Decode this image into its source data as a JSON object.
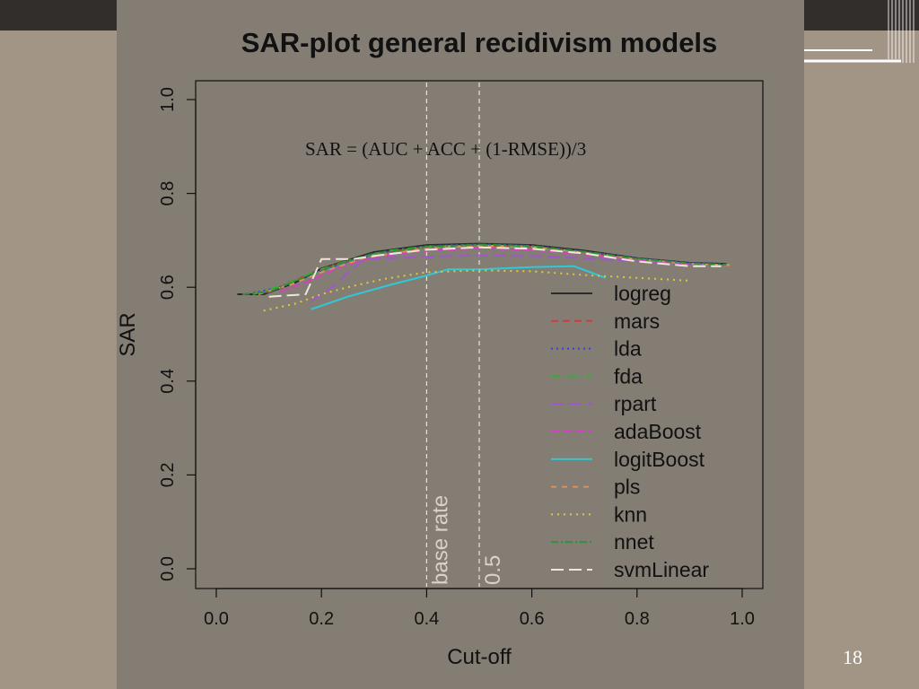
{
  "slide": {
    "number": "18"
  },
  "chart_data": {
    "type": "line",
    "title": "SAR-plot  general recidivism models",
    "annotation": "SAR = (AUC + ACC + (1-RMSE))/3",
    "xlabel": "Cut-off",
    "ylabel": "SAR",
    "xlim": [
      0,
      1.05
    ],
    "ylim": [
      0,
      1.04
    ],
    "xticks": [
      "0.0",
      "0.2",
      "0.4",
      "0.6",
      "0.8",
      "1.0"
    ],
    "yticks": [
      "0.0",
      "0.2",
      "0.4",
      "0.6",
      "0.8",
      "1.0"
    ],
    "vlines": [
      {
        "x": 0.4,
        "label": "base rate"
      },
      {
        "x": 0.5,
        "label": "0.5"
      }
    ],
    "legend_position": "bottom-right",
    "series": [
      {
        "name": "logreg",
        "color": "#2b2b2b",
        "dash": "none",
        "points": [
          [
            0.04,
            0.585
          ],
          [
            0.09,
            0.585
          ],
          [
            0.15,
            0.61
          ],
          [
            0.2,
            0.64
          ],
          [
            0.3,
            0.675
          ],
          [
            0.4,
            0.69
          ],
          [
            0.5,
            0.693
          ],
          [
            0.6,
            0.69
          ],
          [
            0.7,
            0.678
          ],
          [
            0.8,
            0.662
          ],
          [
            0.9,
            0.652
          ],
          [
            0.97,
            0.65
          ]
        ]
      },
      {
        "name": "mars",
        "color": "#d33a3a",
        "dash": "8,5",
        "points": [
          [
            0.05,
            0.585
          ],
          [
            0.1,
            0.59
          ],
          [
            0.16,
            0.62
          ],
          [
            0.22,
            0.645
          ],
          [
            0.3,
            0.672
          ],
          [
            0.4,
            0.685
          ],
          [
            0.5,
            0.69
          ],
          [
            0.6,
            0.686
          ],
          [
            0.7,
            0.675
          ],
          [
            0.8,
            0.66
          ],
          [
            0.9,
            0.65
          ],
          [
            0.96,
            0.648
          ]
        ]
      },
      {
        "name": "lda",
        "color": "#3b3bd0",
        "dash": "2,4",
        "points": [
          [
            0.06,
            0.585
          ],
          [
            0.12,
            0.6
          ],
          [
            0.18,
            0.628
          ],
          [
            0.25,
            0.655
          ],
          [
            0.32,
            0.675
          ],
          [
            0.4,
            0.688
          ],
          [
            0.5,
            0.692
          ],
          [
            0.6,
            0.689
          ],
          [
            0.7,
            0.676
          ],
          [
            0.8,
            0.662
          ],
          [
            0.9,
            0.652
          ],
          [
            0.97,
            0.649
          ]
        ]
      },
      {
        "name": "fda",
        "color": "#30b030",
        "dash": "10,4,2,4",
        "points": [
          [
            0.07,
            0.585
          ],
          [
            0.13,
            0.605
          ],
          [
            0.19,
            0.635
          ],
          [
            0.26,
            0.66
          ],
          [
            0.33,
            0.678
          ],
          [
            0.4,
            0.687
          ],
          [
            0.5,
            0.69
          ],
          [
            0.6,
            0.687
          ],
          [
            0.7,
            0.674
          ],
          [
            0.8,
            0.66
          ],
          [
            0.9,
            0.65
          ],
          [
            0.96,
            0.648
          ]
        ]
      },
      {
        "name": "rpart",
        "color": "#9b59c9",
        "dash": "14,6",
        "points": [
          [
            0.18,
            0.57
          ],
          [
            0.22,
            0.6
          ],
          [
            0.26,
            0.64
          ],
          [
            0.28,
            0.66
          ],
          [
            0.4,
            0.665
          ],
          [
            0.5,
            0.668
          ],
          [
            0.6,
            0.667
          ],
          [
            0.7,
            0.662
          ],
          [
            0.8,
            0.655
          ],
          [
            0.9,
            0.65
          ],
          [
            0.95,
            0.648
          ]
        ]
      },
      {
        "name": "adaBoost",
        "color": "#d33fc6",
        "dash": "10,4",
        "points": [
          [
            0.12,
            0.59
          ],
          [
            0.18,
            0.615
          ],
          [
            0.24,
            0.645
          ],
          [
            0.3,
            0.665
          ],
          [
            0.4,
            0.678
          ],
          [
            0.5,
            0.683
          ],
          [
            0.6,
            0.68
          ],
          [
            0.7,
            0.67
          ],
          [
            0.8,
            0.658
          ],
          [
            0.9,
            0.648
          ]
        ]
      },
      {
        "name": "logitBoost",
        "color": "#2ec9d6",
        "dash": "none",
        "points": [
          [
            0.18,
            0.553
          ],
          [
            0.25,
            0.58
          ],
          [
            0.33,
            0.605
          ],
          [
            0.4,
            0.625
          ],
          [
            0.44,
            0.638
          ],
          [
            0.5,
            0.638
          ],
          [
            0.6,
            0.643
          ],
          [
            0.68,
            0.645
          ],
          [
            0.74,
            0.62
          ]
        ]
      },
      {
        "name": "pls",
        "color": "#d8915f",
        "dash": "6,6",
        "points": [
          [
            0.08,
            0.585
          ],
          [
            0.14,
            0.605
          ],
          [
            0.2,
            0.632
          ],
          [
            0.28,
            0.662
          ],
          [
            0.4,
            0.684
          ],
          [
            0.5,
            0.689
          ],
          [
            0.6,
            0.686
          ],
          [
            0.7,
            0.674
          ],
          [
            0.8,
            0.66
          ],
          [
            0.9,
            0.65
          ],
          [
            0.98,
            0.647
          ]
        ]
      },
      {
        "name": "knn",
        "color": "#dccb3a",
        "dash": "2,5",
        "points": [
          [
            0.09,
            0.55
          ],
          [
            0.15,
            0.565
          ],
          [
            0.2,
            0.585
          ],
          [
            0.25,
            0.6
          ],
          [
            0.32,
            0.618
          ],
          [
            0.4,
            0.632
          ],
          [
            0.5,
            0.636
          ],
          [
            0.6,
            0.634
          ],
          [
            0.7,
            0.626
          ],
          [
            0.8,
            0.62
          ],
          [
            0.9,
            0.614
          ]
        ]
      },
      {
        "name": "nnet",
        "color": "#2f8f3a",
        "dash": "8,3,2,3",
        "points": [
          [
            0.05,
            0.585
          ],
          [
            0.1,
            0.59
          ],
          [
            0.16,
            0.618
          ],
          [
            0.22,
            0.645
          ],
          [
            0.3,
            0.672
          ],
          [
            0.4,
            0.686
          ],
          [
            0.5,
            0.691
          ],
          [
            0.6,
            0.688
          ],
          [
            0.7,
            0.676
          ],
          [
            0.8,
            0.661
          ],
          [
            0.9,
            0.651
          ],
          [
            0.97,
            0.648
          ]
        ]
      },
      {
        "name": "svmLinear",
        "color": "#ece6dc",
        "dash": "14,6",
        "points": [
          [
            0.1,
            0.58
          ],
          [
            0.17,
            0.585
          ],
          [
            0.2,
            0.66
          ],
          [
            0.26,
            0.66
          ],
          [
            0.3,
            0.667
          ],
          [
            0.4,
            0.68
          ],
          [
            0.5,
            0.685
          ],
          [
            0.6,
            0.682
          ],
          [
            0.7,
            0.672
          ],
          [
            0.8,
            0.655
          ],
          [
            0.9,
            0.645
          ],
          [
            0.96,
            0.645
          ]
        ]
      }
    ]
  }
}
